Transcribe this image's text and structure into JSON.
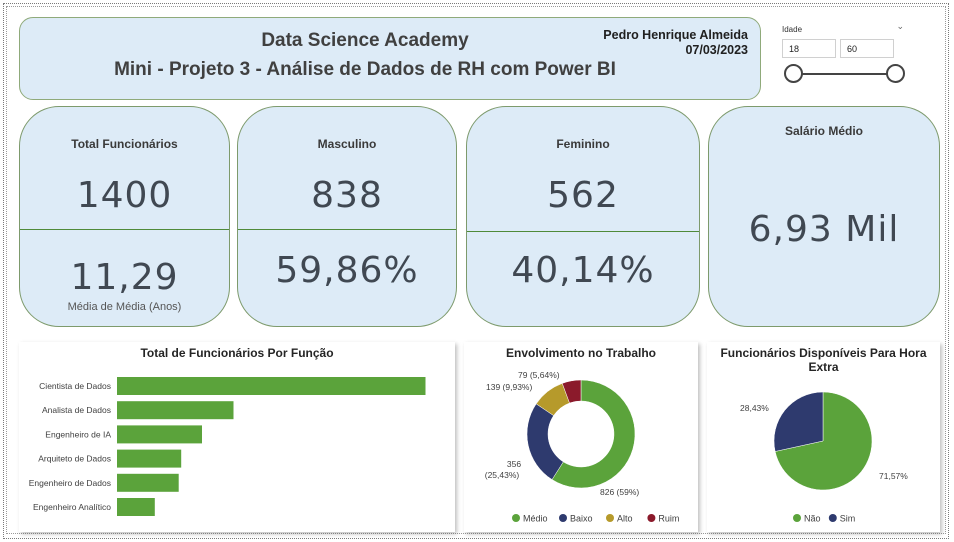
{
  "header": {
    "title_line1": "Data Science Academy",
    "title_line2": "Mini - Projeto 3 - Análise de Dados de RH com Power BI",
    "author": "Pedro Henrique Almeida",
    "date": "07/03/2023"
  },
  "slicer": {
    "label": "Idade",
    "min_value": "18",
    "max_value": "60"
  },
  "cards": {
    "total": {
      "title": "Total Funcionários",
      "value": "1400",
      "sub_value": "11,29",
      "sub_label": "Média de Média (Anos)"
    },
    "male": {
      "title": "Masculino",
      "value": "838",
      "sub_value": "59,86%"
    },
    "female": {
      "title": "Feminino",
      "value": "562",
      "sub_value": "40,14%"
    },
    "salary": {
      "title": "Salário Médio",
      "value": "6,93 Mil"
    }
  },
  "colors": {
    "green": "#5ba33b",
    "navy": "#2e3a6e",
    "gold": "#b69a2b",
    "red": "#8b1a2b",
    "card_bg": "#ddebf7"
  },
  "chart_data": [
    {
      "type": "bar",
      "orientation": "horizontal",
      "title": "Total de Funcionários Por Função",
      "categories": [
        "Cientista de Dados",
        "Analista de Dados",
        "Engenheiro de IA",
        "Arquiteto de Dados",
        "Engenheiro de Dados",
        "Engenheiro Analítico"
      ],
      "values": [
        490,
        185,
        135,
        102,
        98,
        60
      ],
      "xlim": [
        0,
        540
      ]
    },
    {
      "type": "pie",
      "donut": true,
      "title": "Envolvimento no Trabalho",
      "series": [
        {
          "name": "Médio",
          "value": 826,
          "label": "826 (59%)",
          "color": "#5ba33b"
        },
        {
          "name": "Baixo",
          "value": 356,
          "label": "356 (25,43%)",
          "color": "#2e3a6e"
        },
        {
          "name": "Alto",
          "value": 139,
          "label": "139 (9,93%)",
          "color": "#b69a2b"
        },
        {
          "name": "Ruim",
          "value": 79,
          "label": "79 (5,64%)",
          "color": "#8b1a2b"
        }
      ],
      "legend": "bottom"
    },
    {
      "type": "pie",
      "title": "Funcionários Disponíveis Para Hora Extra",
      "series": [
        {
          "name": "Não",
          "value": 71.57,
          "label": "71,57%",
          "color": "#5ba33b"
        },
        {
          "name": "Sim",
          "value": 28.43,
          "label": "28,43%",
          "color": "#2e3a6e"
        }
      ],
      "legend": "bottom"
    }
  ]
}
